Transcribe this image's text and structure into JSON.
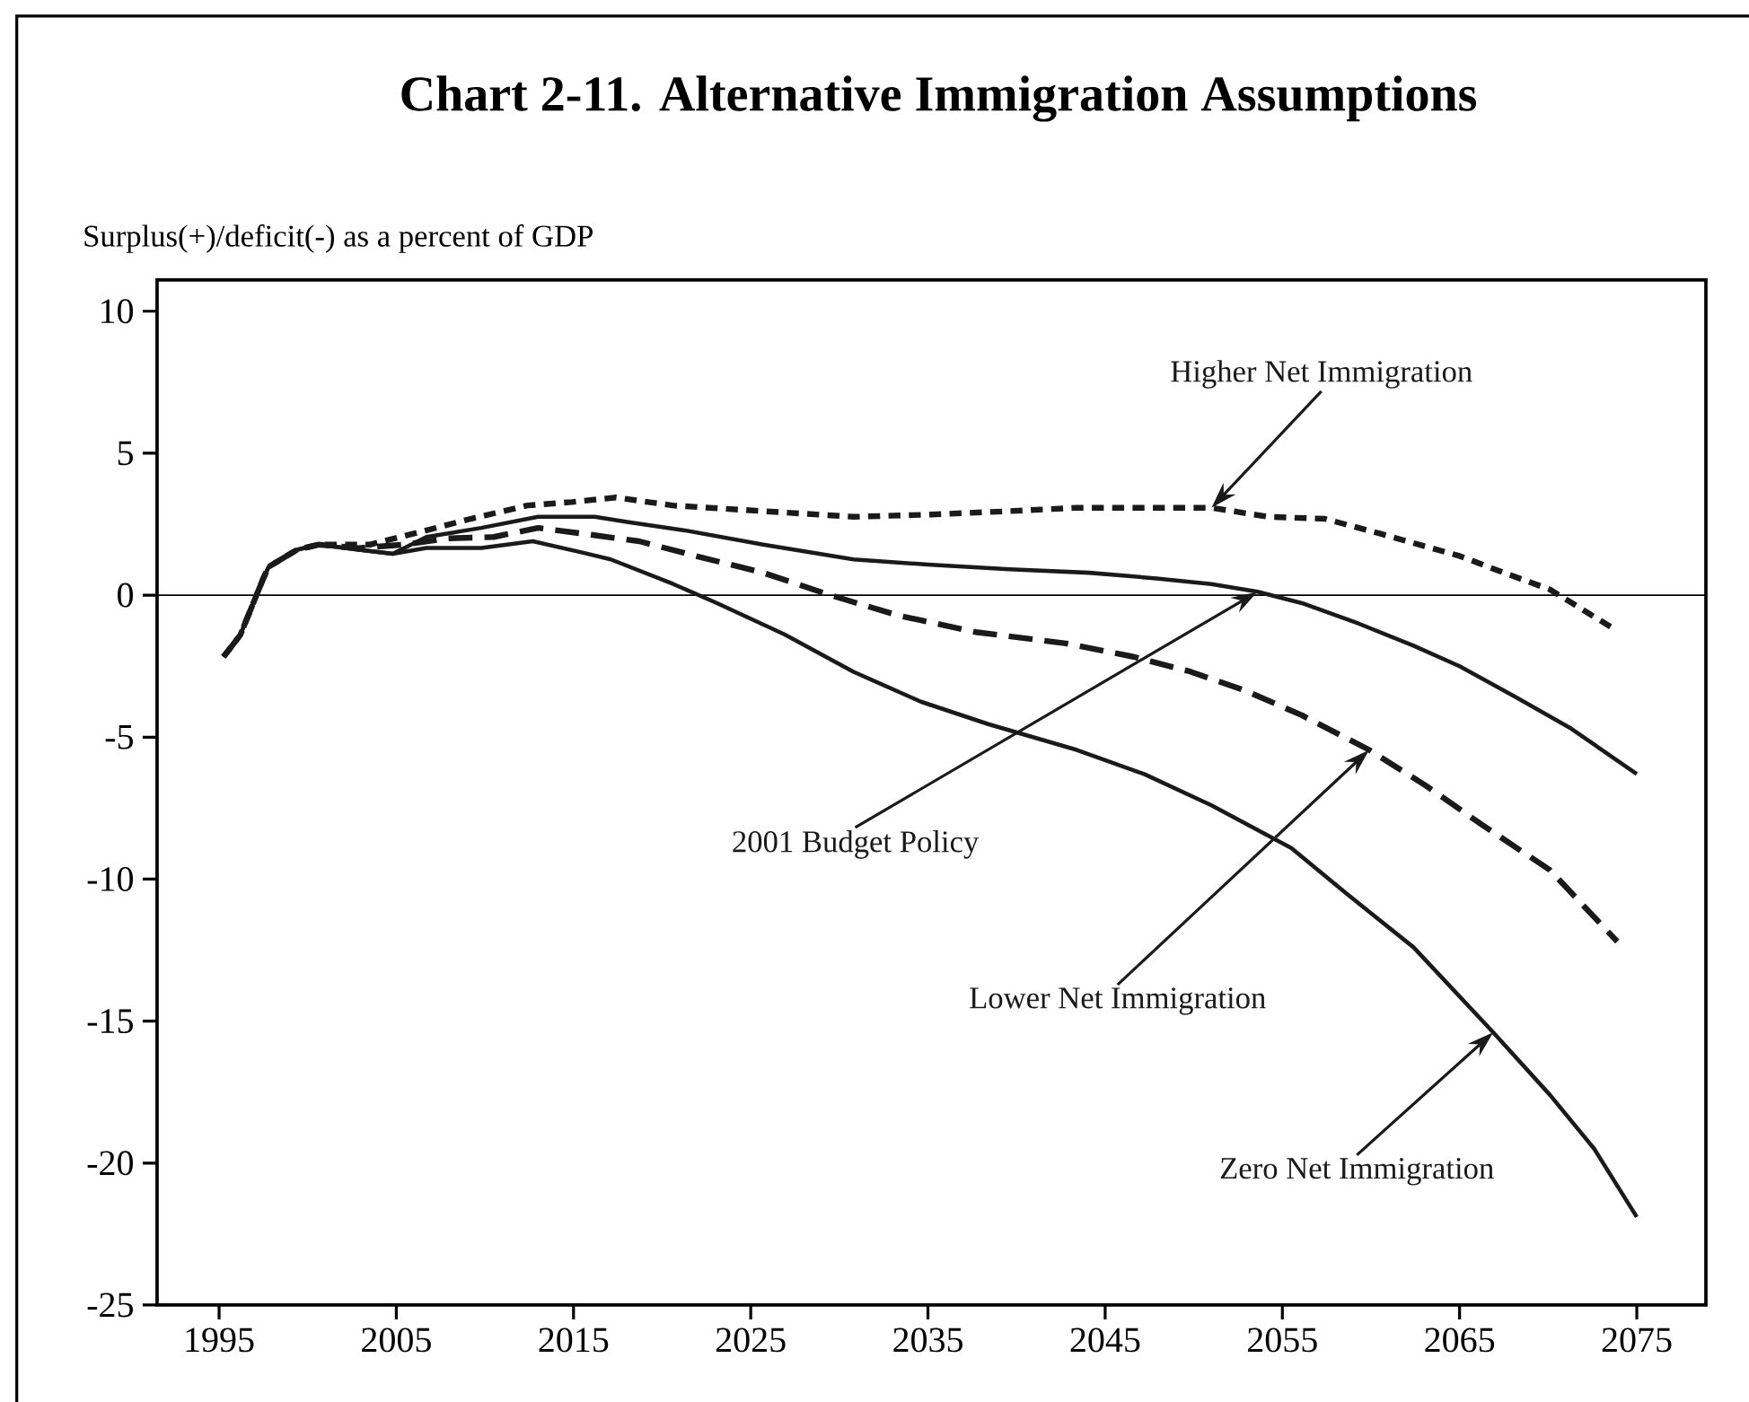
{
  "chart_data": {
    "type": "line",
    "title": "Chart 2-11.  Alternative Immigration Assumptions",
    "ylabel": "Surplus(+)/deficit(-) as a percent of GDP",
    "xlim": [
      1991.5,
      2078.9
    ],
    "ylim": [
      -25,
      11.1
    ],
    "xticks": [
      1995,
      2005,
      2015,
      2025,
      2035,
      2045,
      2055,
      2065,
      2075
    ],
    "yticks": [
      -25,
      -20,
      -15,
      -10,
      -5,
      0,
      5,
      10
    ],
    "ref_lines": [
      {
        "axis": "y",
        "value": 0
      }
    ],
    "series": [
      {
        "name": "Higher Net Immigration",
        "color": "#1a1a1a",
        "line_style": "dotted",
        "x": [
          1995.25,
          1996.2,
          1997.5,
          1997.8,
          1999.4,
          2000.6,
          2003.5,
          2006,
          2009.2,
          2012.4,
          2014.9,
          2017.4,
          2020.6,
          2025.7,
          2030.8,
          2035.2,
          2039.6,
          2043.4,
          2051,
          2054.2,
          2057.4,
          2060.5,
          2065,
          2067.5,
          2070.1,
          2073.9
        ],
        "values": [
          -2.17,
          -1.4,
          0.6,
          1.0,
          1.6,
          1.78,
          1.78,
          2.17,
          2.69,
          3.16,
          3.28,
          3.44,
          3.16,
          2.96,
          2.76,
          2.84,
          2.96,
          3.08,
          3.08,
          2.76,
          2.69,
          2.17,
          1.38,
          0.79,
          0.2,
          -1.26
        ]
      },
      {
        "name": "2001 Budget Policy",
        "color": "#1a1a1a",
        "line_style": "solid",
        "x": [
          1995.25,
          1996.2,
          1997.5,
          1997.8,
          1999.4,
          2000.6,
          2002.9,
          2004.8,
          2006.7,
          2009.8,
          2013,
          2016.2,
          2018.1,
          2021.2,
          2025.7,
          2030.8,
          2035.2,
          2039.6,
          2044.1,
          2047.9,
          2051,
          2053.6,
          2056.1,
          2059.3,
          2062.4,
          2065,
          2068.2,
          2071.3,
          2075
        ],
        "values": [
          -2.17,
          -1.4,
          0.6,
          1.0,
          1.6,
          1.78,
          1.6,
          1.46,
          2.05,
          2.37,
          2.76,
          2.76,
          2.57,
          2.29,
          1.78,
          1.26,
          1.07,
          0.91,
          0.79,
          0.59,
          0.39,
          0.12,
          -0.28,
          -1.0,
          -1.78,
          -2.5,
          -3.6,
          -4.7,
          -6.3
        ]
      },
      {
        "name": "Lower Net Immigration",
        "color": "#1a1a1a",
        "line_style": "dashed",
        "x": [
          1995.25,
          1996.2,
          1997.5,
          1997.8,
          1999.4,
          2000.6,
          2002.9,
          2005.4,
          2007.9,
          2010.5,
          2013,
          2015.5,
          2018.7,
          2021.9,
          2025.7,
          2029.5,
          2033.3,
          2037.7,
          2042.8,
          2046.6,
          2049.8,
          2052.9,
          2056.1,
          2059.9,
          2063.1,
          2066.3,
          2070.1,
          2073.9
        ],
        "values": [
          -2.17,
          -1.4,
          0.6,
          1.0,
          1.6,
          1.78,
          1.66,
          1.78,
          2.0,
          2.05,
          2.37,
          2.17,
          1.9,
          1.38,
          0.79,
          0.0,
          -0.71,
          -1.3,
          -1.7,
          -2.17,
          -2.69,
          -3.36,
          -4.23,
          -5.45,
          -6.71,
          -8.1,
          -9.68,
          -12.2
        ]
      },
      {
        "name": "Zero Net Immigration",
        "color": "#1a1a1a",
        "line_style": "solid",
        "x": [
          1995.25,
          1996.2,
          1997.5,
          1997.8,
          1999.4,
          2000.6,
          2002.9,
          2004.8,
          2006.7,
          2009.8,
          2012.7,
          2015.5,
          2017.1,
          2020.6,
          2023.1,
          2026.9,
          2030.8,
          2034.6,
          2038.4,
          2043.4,
          2047.2,
          2051,
          2055.5,
          2058.6,
          2062.4,
          2066.9,
          2070.1,
          2072.6,
          2075
        ],
        "values": [
          -2.17,
          -1.4,
          0.6,
          1.0,
          1.6,
          1.78,
          1.6,
          1.46,
          1.66,
          1.66,
          1.9,
          1.5,
          1.26,
          0.4,
          -0.28,
          -1.38,
          -2.7,
          -3.75,
          -4.54,
          -5.45,
          -6.3,
          -7.4,
          -8.9,
          -10.5,
          -12.4,
          -15.4,
          -17.6,
          -19.5,
          -21.9
        ]
      }
    ]
  }
}
